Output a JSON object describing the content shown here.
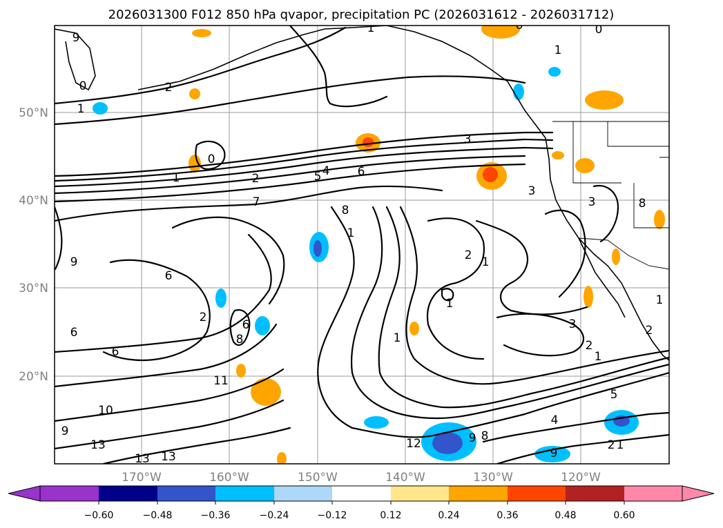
{
  "title": "2026031300 F012 850 hPa qvapor, precipitation PC (2026031612 - 2026031712)",
  "map": {
    "lat_labels": [
      {
        "label": "50°N",
        "lat": 50
      },
      {
        "label": "40°N",
        "lat": 40
      },
      {
        "label": "30°N",
        "lat": 30
      },
      {
        "label": "20°N",
        "lat": 20
      }
    ],
    "lon_labels": [
      {
        "label": "170°W",
        "lon": -170
      },
      {
        "label": "160°W",
        "lon": -160
      },
      {
        "label": "150°W",
        "lon": -150
      },
      {
        "label": "140°W",
        "lon": -140
      },
      {
        "label": "130°W",
        "lon": -130
      },
      {
        "label": "120°W",
        "lon": -120
      }
    ],
    "contour_labels": [
      "1",
      "0",
      "0",
      "2",
      "0",
      "1",
      "0",
      "1",
      "2",
      "3",
      "4",
      "6",
      "5",
      "1",
      "2",
      "7",
      "8",
      "6",
      "9",
      "6",
      "6",
      "2",
      "1",
      "9",
      "6",
      "8",
      "11",
      "10",
      "9",
      "13",
      "13",
      "13",
      "12",
      "9",
      "8",
      "1",
      "2",
      "1",
      "3",
      "2",
      "1",
      "5",
      "4",
      "3",
      "3",
      "8",
      "1",
      "2",
      "1",
      "9",
      "1"
    ]
  },
  "colorbar": {
    "ticks": [
      "−0.60",
      "−0.48",
      "−0.36",
      "−0.24",
      "−0.12",
      "0.12",
      "0.24",
      "0.36",
      "0.48",
      "0.60"
    ],
    "colors": [
      "#9933cc",
      "#00008b",
      "#3355cc",
      "#00bfff",
      "#add8f7",
      "#ffffff",
      "#ffe68a",
      "#ffa500",
      "#ff4500",
      "#b22222",
      "#ff88aa"
    ]
  }
}
